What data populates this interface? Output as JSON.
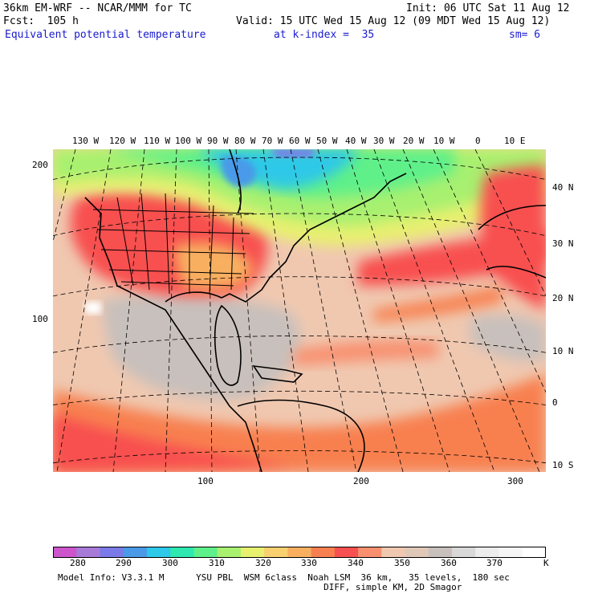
{
  "header": {
    "model": "36km EM-WRF -- NCAR/MMM for TC",
    "init": "Init: 06 UTC Sat 11 Aug 12",
    "fcst": "Fcst:  105 h",
    "valid": "Valid: 15 UTC Wed 15 Aug 12 (09 MDT Wed 15 Aug 12)",
    "field": "Equivalent potential temperature",
    "level": "at k-index =  35",
    "smoothing": "sm= 6"
  },
  "map": {
    "top_lon_labels": [
      "130 W",
      "120 W",
      "110 W",
      "100 W",
      "90 W",
      "80 W",
      "70 W",
      "60 W",
      "50 W",
      "40 W",
      "30 W",
      "20 W",
      "10 W",
      "0",
      "10 E"
    ],
    "right_lat_labels": [
      "40 N",
      "30 N",
      "20 N",
      "10 N",
      "0",
      "10 S"
    ],
    "left_grid_labels": [
      "200",
      "100"
    ],
    "bottom_grid_labels": [
      "100",
      "200",
      "300"
    ]
  },
  "colorbar": {
    "colors": [
      "#cc55cc",
      "#a87ad8",
      "#7a7ae8",
      "#4a9ae8",
      "#2ec8e8",
      "#2ee8b0",
      "#5ef08a",
      "#a8f070",
      "#e8f070",
      "#f8d070",
      "#f8b060",
      "#f88050",
      "#f85050",
      "#f89070",
      "#f0c8b0",
      "#e0c8b8",
      "#c8c0bc",
      "#d8d8d8",
      "#ececec",
      "#f6f6f6",
      "#ffffff"
    ],
    "ticks": [
      "280",
      "290",
      "300",
      "310",
      "320",
      "330",
      "340",
      "350",
      "360",
      "370"
    ],
    "unit": "K"
  },
  "footer": {
    "line1": "Model Info: V3.3.1 M      YSU PBL  WSM 6class  Noah LSM  36 km,   35 levels,  180 sec",
    "line2": "                                                  DIFF, simple KM, 2D Smagor"
  }
}
